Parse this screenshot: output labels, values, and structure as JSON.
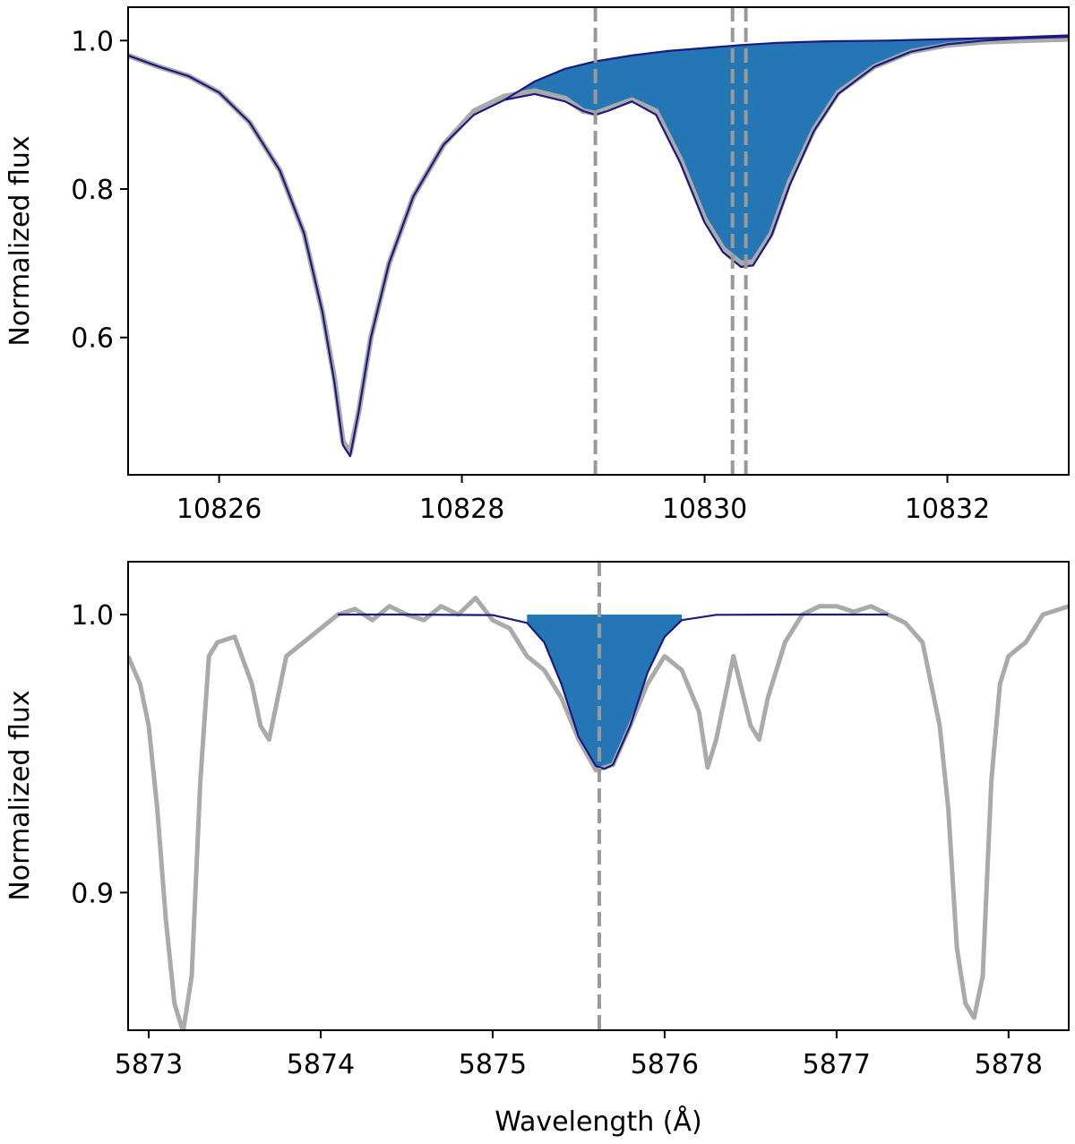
{
  "chart_data": [
    {
      "type": "line",
      "xlabel": "",
      "ylabel": "Normalized flux",
      "xlim": [
        10825.25,
        10833.0
      ],
      "ylim": [
        0.415,
        1.045
      ],
      "xticks": [
        10826,
        10828,
        10830,
        10832
      ],
      "xtick_labels": [
        "10826",
        "10828",
        "10830",
        "10832"
      ],
      "yticks": [
        0.6,
        0.8,
        1.0
      ],
      "ytick_labels": [
        "0.6",
        "0.8",
        "1.0"
      ],
      "grid": false,
      "vlines": [
        10829.1,
        10830.23,
        10830.34
      ],
      "colors": {
        "observed": "#aaaaaa",
        "model": "#1a1a80",
        "fill": "#2477b4",
        "vline": "#999999"
      },
      "series": [
        {
          "role": "observed",
          "x": [
            10825.25,
            10825.5,
            10825.75,
            10826.0,
            10826.25,
            10826.5,
            10826.7,
            10826.85,
            10826.95,
            10827.02,
            10827.08,
            10827.15,
            10827.25,
            10827.4,
            10827.6,
            10827.85,
            10828.1,
            10828.35,
            10828.6,
            10828.85,
            10829.0,
            10829.1,
            10829.2,
            10829.4,
            10829.6,
            10829.8,
            10830.0,
            10830.15,
            10830.3,
            10830.4,
            10830.55,
            10830.7,
            10830.9,
            10831.1,
            10831.4,
            10831.7,
            10832.0,
            10832.3,
            10832.6,
            10833.0
          ],
          "y": [
            0.98,
            0.965,
            0.952,
            0.93,
            0.89,
            0.825,
            0.74,
            0.635,
            0.545,
            0.46,
            0.445,
            0.5,
            0.6,
            0.7,
            0.79,
            0.86,
            0.905,
            0.925,
            0.932,
            0.922,
            0.905,
            0.902,
            0.908,
            0.92,
            0.905,
            0.84,
            0.76,
            0.72,
            0.7,
            0.702,
            0.74,
            0.81,
            0.88,
            0.93,
            0.965,
            0.985,
            0.994,
            0.998,
            1.0,
            1.002
          ]
        },
        {
          "role": "model",
          "x": [
            10825.25,
            10825.5,
            10825.75,
            10826.0,
            10826.25,
            10826.5,
            10826.7,
            10826.85,
            10826.95,
            10827.02,
            10827.08,
            10827.15,
            10827.25,
            10827.4,
            10827.6,
            10827.85,
            10828.1,
            10828.35,
            10828.6,
            10828.85,
            10829.0,
            10829.1,
            10829.2,
            10829.4,
            10829.6,
            10829.8,
            10830.0,
            10830.15,
            10830.3,
            10830.4,
            10830.55,
            10830.7,
            10830.9,
            10831.1,
            10831.4,
            10831.7,
            10832.0,
            10832.3,
            10832.6,
            10833.0
          ],
          "y": [
            0.98,
            0.965,
            0.952,
            0.93,
            0.89,
            0.825,
            0.74,
            0.635,
            0.54,
            0.455,
            0.44,
            0.5,
            0.6,
            0.7,
            0.79,
            0.86,
            0.9,
            0.92,
            0.928,
            0.918,
            0.905,
            0.9,
            0.905,
            0.918,
            0.9,
            0.835,
            0.755,
            0.715,
            0.695,
            0.697,
            0.737,
            0.805,
            0.878,
            0.928,
            0.965,
            0.985,
            0.995,
            1.0,
            1.003,
            1.005
          ]
        },
        {
          "role": "continuum",
          "x": [
            10828.35,
            10828.6,
            10828.85,
            10829.1,
            10829.4,
            10829.7,
            10830.0,
            10830.3,
            10830.6,
            10831.0,
            10831.5,
            10832.0,
            10832.5,
            10833.0
          ],
          "y": [
            0.92,
            0.945,
            0.962,
            0.972,
            0.98,
            0.986,
            0.99,
            0.994,
            0.997,
            0.999,
            1.0,
            1.002,
            1.004,
            1.007
          ]
        }
      ],
      "fill_between": {
        "upper": "continuum",
        "lower": "model",
        "x_range": [
          10828.35,
          10833.0
        ]
      }
    },
    {
      "type": "line",
      "xlabel": "Wavelength (Å)",
      "ylabel": "Normalized flux",
      "xlim": [
        5872.88,
        5878.35
      ],
      "ylim": [
        0.8505,
        1.019
      ],
      "xticks": [
        5873,
        5874,
        5875,
        5876,
        5877,
        5878
      ],
      "xtick_labels": [
        "5873",
        "5874",
        "5875",
        "5876",
        "5877",
        "5878"
      ],
      "yticks": [
        0.9,
        1.0
      ],
      "ytick_labels": [
        "0.9",
        "1.0"
      ],
      "grid": false,
      "vlines": [
        5875.62
      ],
      "colors": {
        "observed": "#aaaaaa",
        "model": "#1a1a80",
        "fill": "#2477b4",
        "vline": "#999999"
      },
      "series": [
        {
          "role": "observed",
          "x": [
            5872.88,
            5872.95,
            5873.0,
            5873.05,
            5873.1,
            5873.15,
            5873.2,
            5873.25,
            5873.3,
            5873.35,
            5873.4,
            5873.5,
            5873.6,
            5873.65,
            5873.7,
            5873.75,
            5873.8,
            5873.9,
            5874.0,
            5874.1,
            5874.2,
            5874.3,
            5874.4,
            5874.5,
            5874.6,
            5874.7,
            5874.8,
            5874.9,
            5875.0,
            5875.1,
            5875.2,
            5875.3,
            5875.4,
            5875.5,
            5875.6,
            5875.7,
            5875.8,
            5875.9,
            5876.0,
            5876.1,
            5876.2,
            5876.25,
            5876.3,
            5876.4,
            5876.5,
            5876.55,
            5876.6,
            5876.7,
            5876.8,
            5876.9,
            5877.0,
            5877.1,
            5877.2,
            5877.3,
            5877.4,
            5877.5,
            5877.6,
            5877.65,
            5877.7,
            5877.75,
            5877.8,
            5877.85,
            5877.9,
            5877.95,
            5878.0,
            5878.1,
            5878.2,
            5878.35
          ],
          "y": [
            0.985,
            0.975,
            0.96,
            0.93,
            0.89,
            0.86,
            0.85,
            0.87,
            0.94,
            0.985,
            0.99,
            0.992,
            0.975,
            0.96,
            0.955,
            0.97,
            0.985,
            0.99,
            0.995,
            1.0,
            1.002,
            0.998,
            1.003,
            1.0,
            0.998,
            1.003,
            1.0,
            1.006,
            0.998,
            0.995,
            0.985,
            0.98,
            0.97,
            0.955,
            0.944,
            0.946,
            0.96,
            0.975,
            0.985,
            0.98,
            0.965,
            0.945,
            0.955,
            0.985,
            0.96,
            0.955,
            0.97,
            0.99,
            1.0,
            1.003,
            1.003,
            1.001,
            1.003,
            1.0,
            0.997,
            0.99,
            0.96,
            0.93,
            0.88,
            0.86,
            0.855,
            0.87,
            0.94,
            0.975,
            0.985,
            0.99,
            1.0,
            1.003
          ]
        },
        {
          "role": "model",
          "x": [
            5874.1,
            5874.5,
            5875.0,
            5875.2,
            5875.3,
            5875.4,
            5875.5,
            5875.6,
            5875.65,
            5875.7,
            5875.8,
            5875.9,
            5876.0,
            5876.1,
            5876.3,
            5876.8,
            5877.3
          ],
          "y": [
            1.0,
            1.0,
            0.9998,
            0.997,
            0.99,
            0.975,
            0.956,
            0.9455,
            0.9445,
            0.946,
            0.96,
            0.979,
            0.992,
            0.998,
            0.9999,
            1.0,
            1.0
          ]
        }
      ],
      "fill_between": {
        "upper": 1.0,
        "lower": "model",
        "x_range": [
          5875.2,
          5876.1
        ]
      }
    }
  ]
}
